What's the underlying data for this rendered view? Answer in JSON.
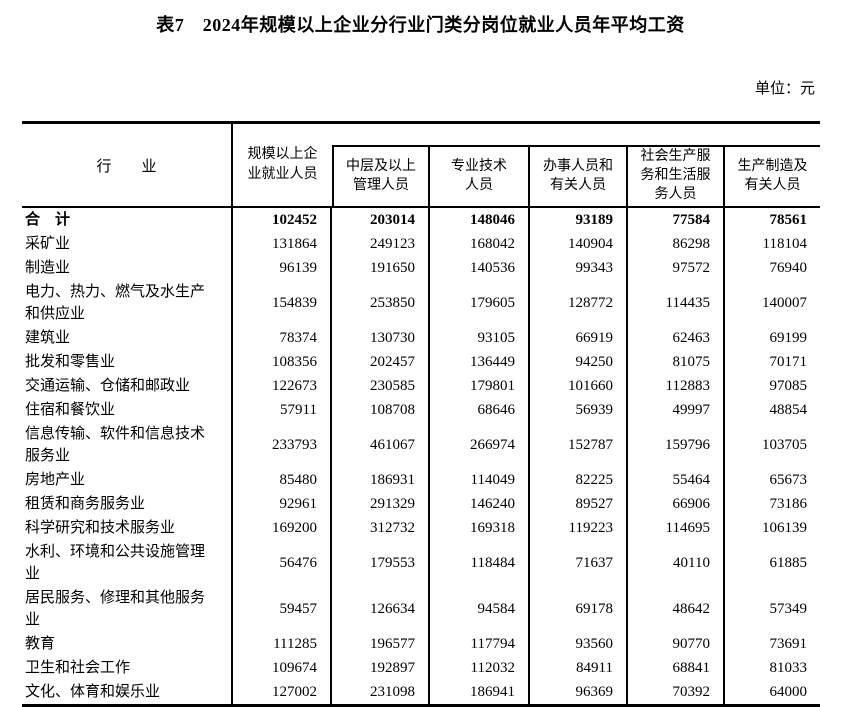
{
  "title": "表7　2024年规模以上企业分行业门类分岗位就业人员年平均工资",
  "unit_label": "单位：元",
  "table": {
    "industry_header": "行　　业",
    "columns": [
      "规模以上企\n业就业人员",
      "中层及以上\n管理人员",
      "专业技术\n人员",
      "办事人员和\n有关人员",
      "社会生产服\n务和生活服\n务人员",
      "生产制造及\n有关人员"
    ],
    "rows": [
      {
        "industry": "合　计",
        "bold": true,
        "values": [
          102452,
          203014,
          148046,
          93189,
          77584,
          78561
        ]
      },
      {
        "industry": "采矿业",
        "bold": false,
        "values": [
          131864,
          249123,
          168042,
          140904,
          86298,
          118104
        ]
      },
      {
        "industry": "制造业",
        "bold": false,
        "values": [
          96139,
          191650,
          140536,
          99343,
          97572,
          76940
        ]
      },
      {
        "industry": "电力、热力、燃气及水生产\n和供应业",
        "bold": false,
        "values": [
          154839,
          253850,
          179605,
          128772,
          114435,
          140007
        ]
      },
      {
        "industry": "建筑业",
        "bold": false,
        "values": [
          78374,
          130730,
          93105,
          66919,
          62463,
          69199
        ]
      },
      {
        "industry": "批发和零售业",
        "bold": false,
        "values": [
          108356,
          202457,
          136449,
          94250,
          81075,
          70171
        ]
      },
      {
        "industry": "交通运输、仓储和邮政业",
        "bold": false,
        "values": [
          122673,
          230585,
          179801,
          101660,
          112883,
          97085
        ]
      },
      {
        "industry": "住宿和餐饮业",
        "bold": false,
        "values": [
          57911,
          108708,
          68646,
          56939,
          49997,
          48854
        ]
      },
      {
        "industry": "信息传输、软件和信息技术\n服务业",
        "bold": false,
        "values": [
          233793,
          461067,
          266974,
          152787,
          159796,
          103705
        ]
      },
      {
        "industry": "房地产业",
        "bold": false,
        "values": [
          85480,
          186931,
          114049,
          82225,
          55464,
          65673
        ]
      },
      {
        "industry": "租赁和商务服务业",
        "bold": false,
        "values": [
          92961,
          291329,
          146240,
          89527,
          66906,
          73186
        ]
      },
      {
        "industry": "科学研究和技术服务业",
        "bold": false,
        "values": [
          169200,
          312732,
          169318,
          119223,
          114695,
          106139
        ]
      },
      {
        "industry": "水利、环境和公共设施管理\n业",
        "bold": false,
        "values": [
          56476,
          179553,
          118484,
          71637,
          40110,
          61885
        ]
      },
      {
        "industry": "居民服务、修理和其他服务\n业",
        "bold": false,
        "values": [
          59457,
          126634,
          94584,
          69178,
          48642,
          57349
        ]
      },
      {
        "industry": "教育",
        "bold": false,
        "values": [
          111285,
          196577,
          117794,
          93560,
          90770,
          73691
        ]
      },
      {
        "industry": "卫生和社会工作",
        "bold": false,
        "values": [
          109674,
          192897,
          112032,
          84911,
          68841,
          81033
        ]
      },
      {
        "industry": "文化、体育和娱乐业",
        "bold": false,
        "values": [
          127002,
          231098,
          186941,
          96369,
          70392,
          64000
        ]
      }
    ]
  }
}
